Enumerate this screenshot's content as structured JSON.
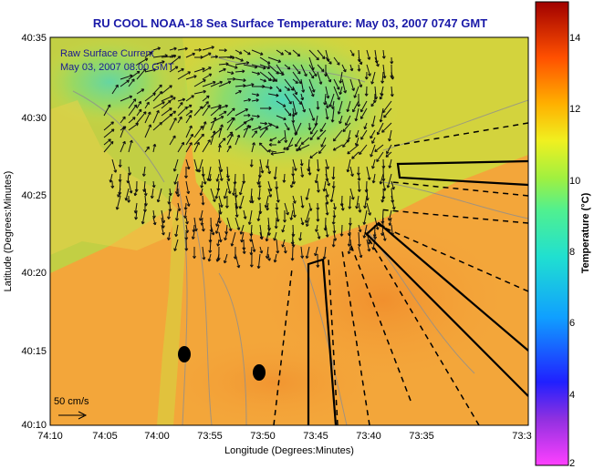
{
  "title": "RU COOL  NOAA-18  Sea Surface Temperature:  May 03, 2007 0747 GMT",
  "legend": {
    "line1": "Raw Surface Current",
    "line2": "May 03, 2007 08:00 GMT"
  },
  "scale_label": "50 cm/s",
  "x_axis": {
    "label": "Longitude (Degrees:Minutes)",
    "ticks": [
      "74:10",
      "74:05",
      "74:00",
      "73:55",
      "73:50",
      "73:45",
      "73:40",
      "73:35",
      "73:3"
    ]
  },
  "y_axis": {
    "label": "Latitude (Degrees:Minutes)",
    "ticks": [
      "40:35",
      "40:30",
      "40:25",
      "40:20",
      "40:15",
      "40:10"
    ]
  },
  "colorbar": {
    "label": "Temperature (°C)",
    "ticks": [
      "14",
      "12",
      "10",
      "8",
      "6",
      "4",
      "2"
    ],
    "range": [
      2,
      15
    ]
  },
  "colors": {
    "title": "#1a1aa8",
    "legend_text": "#1a1a90",
    "sst_warm": "#f5a23a",
    "sst_mid": "#d8dc3a",
    "sst_cool": "#6cd6a0"
  }
}
